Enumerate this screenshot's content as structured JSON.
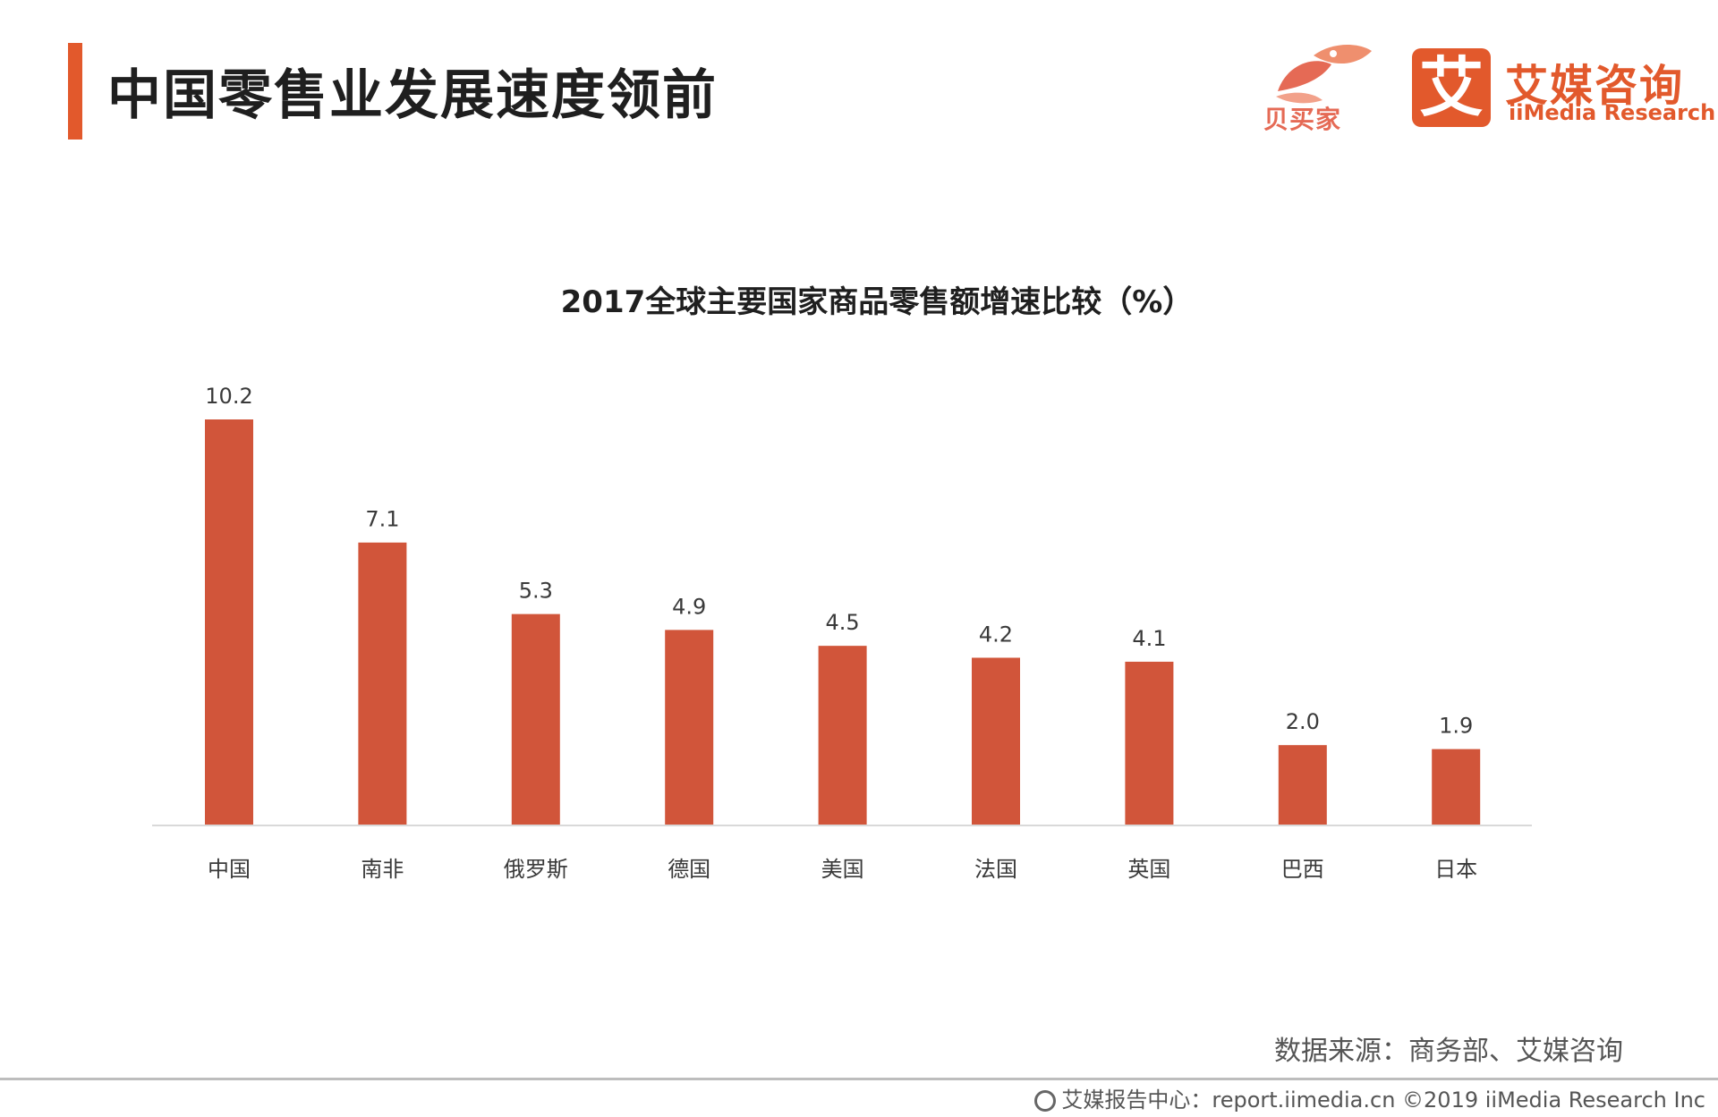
{
  "header": {
    "title": "中国零售业发展速度领前"
  },
  "logos": {
    "beimaijia": {
      "name": "贝买家"
    },
    "aimei": {
      "icon_char": "艾",
      "name_cn": "艾媒咨询",
      "name_en": "iiMedia Research"
    }
  },
  "colors": {
    "accent": "#e2592c",
    "bar": "#d1553a"
  },
  "chart_data": {
    "type": "bar",
    "title": "2017全球主要国家商品零售额增速比较（%）",
    "categories": [
      "中国",
      "南非",
      "俄罗斯",
      "德国",
      "美国",
      "法国",
      "英国",
      "巴西",
      "日本"
    ],
    "values": [
      10.2,
      7.1,
      5.3,
      4.9,
      4.5,
      4.2,
      4.1,
      2.0,
      1.9
    ],
    "value_labels": [
      "10.2",
      "7.1",
      "5.3",
      "4.9",
      "4.5",
      "4.2",
      "4.1",
      "2.0",
      "1.9"
    ],
    "xlabel": "",
    "ylabel": "",
    "ylim": [
      0,
      10.2
    ],
    "grid": false,
    "legend": "none"
  },
  "footer": {
    "source": "数据来源：商务部、艾媒咨询",
    "copyright": "艾媒报告中心：report.iimedia.cn  ©2019  iiMedia Research  Inc"
  }
}
